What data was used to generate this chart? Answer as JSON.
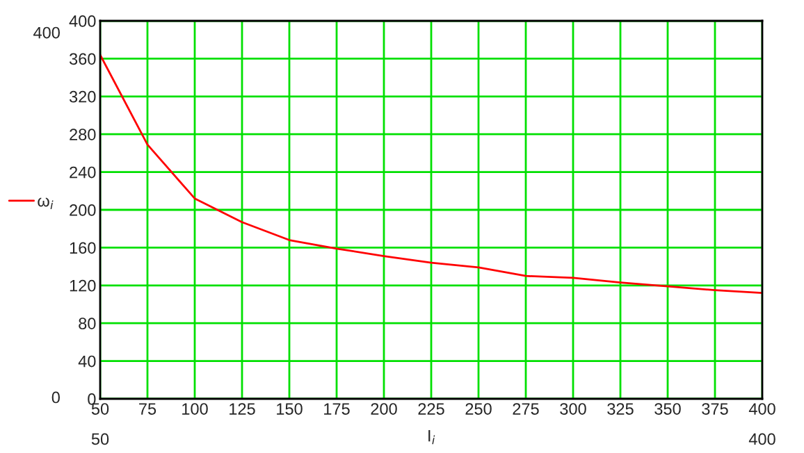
{
  "chart_data": {
    "type": "line",
    "xlabel": "I$_{i}$",
    "x": [
      50,
      75,
      100,
      125,
      150,
      175,
      200,
      225,
      250,
      275,
      300,
      325,
      350,
      375,
      400
    ],
    "series": [
      {
        "name": "ω$_{i}$",
        "color": "#ff0000",
        "values": [
          364,
          269,
          212,
          187,
          168,
          159,
          151,
          144,
          139,
          130,
          128,
          123,
          119,
          115,
          112
        ]
      }
    ],
    "xlim": [
      50,
      400
    ],
    "xticks": [
      50,
      75,
      100,
      125,
      150,
      175,
      200,
      225,
      250,
      275,
      300,
      325,
      350,
      375,
      400
    ],
    "ylim": [
      0,
      400
    ],
    "yticks": [
      0,
      40,
      80,
      120,
      160,
      200,
      240,
      280,
      320,
      360,
      400
    ],
    "grid": true,
    "legend": "left",
    "marker": "none",
    "line_style": "solid",
    "annotations": [
      "400",
      "0",
      "50",
      "400"
    ]
  }
}
